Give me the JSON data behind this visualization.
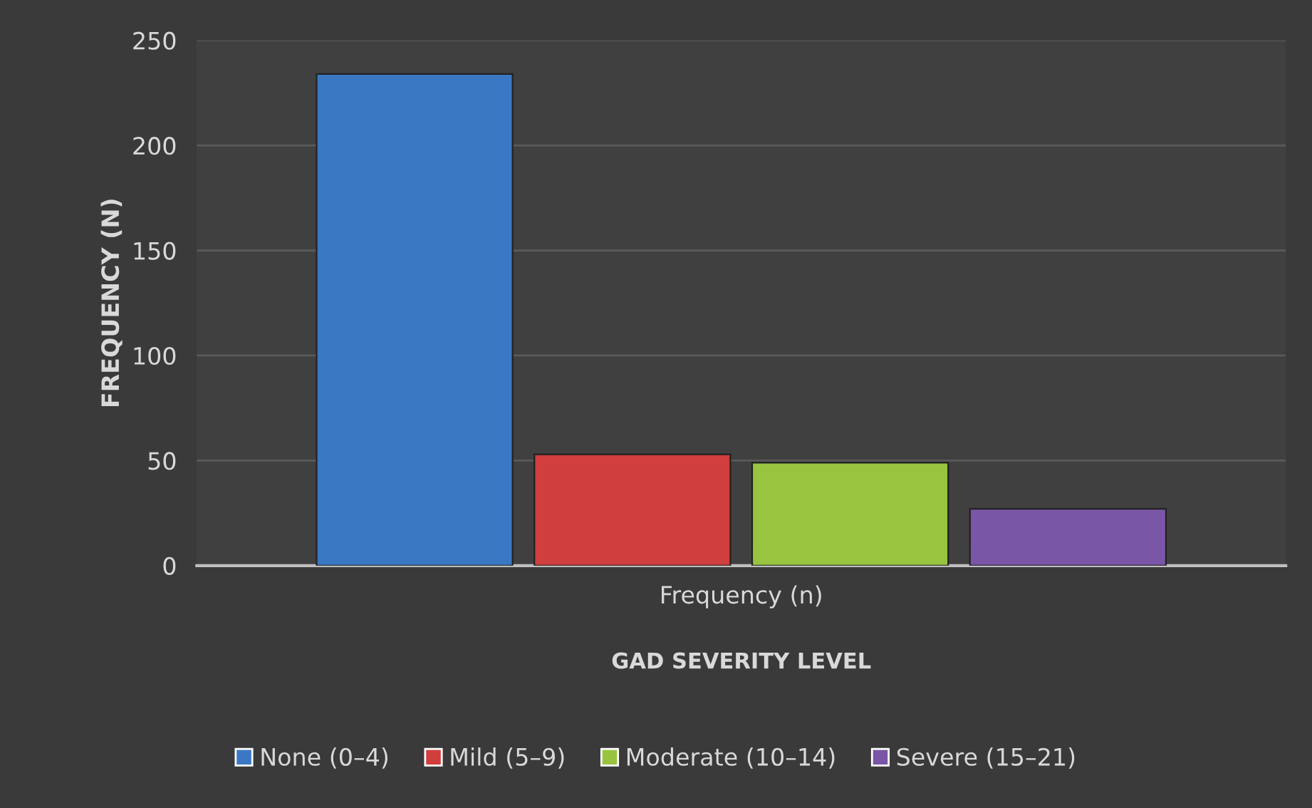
{
  "chart_data": {
    "type": "bar",
    "xlabel": "GAD SEVERITY LEVEL",
    "ylabel": "FREQUENCY (N)",
    "categories": [
      "Frequency (n)"
    ],
    "series": [
      {
        "name": "None (0–4)",
        "color": "#3a78c4",
        "values": [
          234
        ]
      },
      {
        "name": "Mild (5–9)",
        "color": "#d03e3e",
        "values": [
          53
        ]
      },
      {
        "name": "Moderate (10–14)",
        "color": "#98c440",
        "values": [
          49
        ]
      },
      {
        "name": "Severe (15–21)",
        "color": "#7a56a6",
        "values": [
          27
        ]
      }
    ],
    "ylim": [
      0,
      250
    ],
    "yticks": [
      0,
      50,
      100,
      150,
      200,
      250
    ],
    "grid": "y",
    "legend": "bottom"
  }
}
